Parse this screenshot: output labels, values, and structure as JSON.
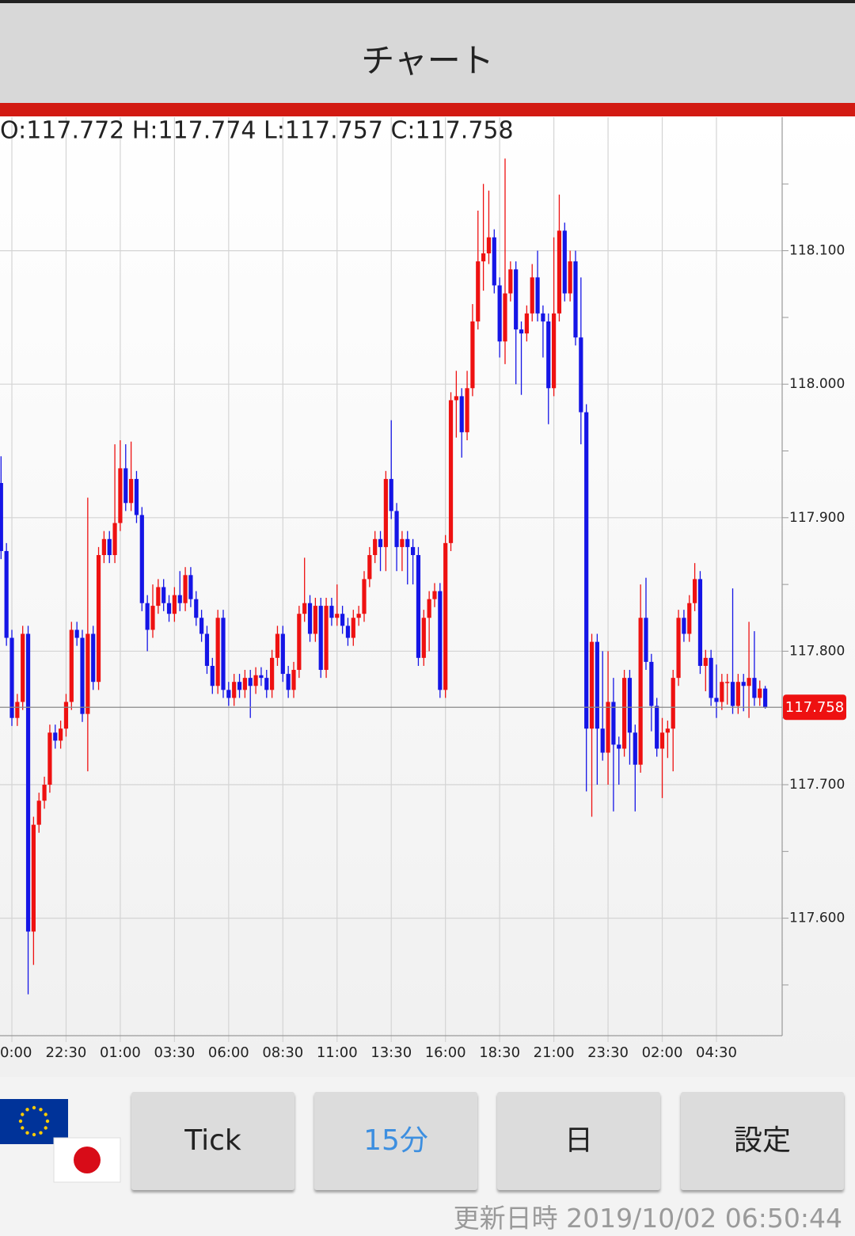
{
  "header": {
    "title": "チャート"
  },
  "chart_data": {
    "type": "candlestick",
    "ohlc_text": "O:117.772 H:117.774 L:117.757 C:117.758",
    "categories": [
      null,
      null,
      "0:00",
      null,
      null,
      null,
      null,
      null,
      null,
      null,
      null,
      null,
      "22:30",
      null,
      null,
      null,
      null,
      null,
      null,
      null,
      null,
      null,
      "01:00",
      null,
      null,
      null,
      null,
      null,
      null,
      null,
      null,
      null,
      "03:30",
      null,
      null,
      null,
      null,
      null,
      null,
      null,
      null,
      null,
      "06:00",
      null,
      null,
      null,
      null,
      null,
      null,
      null,
      null,
      null,
      "08:30",
      null,
      null,
      null,
      null,
      null,
      null,
      null,
      null,
      null,
      "11:00",
      null,
      null,
      null,
      null,
      null,
      null,
      null,
      null,
      null,
      "13:30",
      null,
      null,
      null,
      null,
      null,
      null,
      null,
      null,
      null,
      "16:00",
      null,
      null,
      null,
      null,
      null,
      null,
      null,
      null,
      null,
      "18:30",
      null,
      null,
      null,
      null,
      null,
      null,
      null,
      null,
      null,
      "21:00",
      null,
      null,
      null,
      null,
      null,
      null,
      null,
      null,
      null,
      "23:30",
      null,
      null,
      null,
      null,
      null,
      null,
      null,
      null,
      null,
      "02:00",
      null,
      null,
      null,
      null,
      null,
      null,
      null,
      null,
      null,
      "04:30",
      null,
      null,
      null,
      null,
      null,
      null,
      null,
      null,
      null
    ],
    "open": [
      117.926,
      117.875,
      117.81,
      117.75,
      117.762,
      117.813,
      117.59,
      117.67,
      117.688,
      117.7,
      117.739,
      117.733,
      117.742,
      117.762,
      117.816,
      117.81,
      117.753,
      117.813,
      117.777,
      117.872,
      117.884,
      117.872,
      117.896,
      117.937,
      117.911,
      117.929,
      117.902,
      117.836,
      117.816,
      117.834,
      117.848,
      117.836,
      117.828,
      117.842,
      117.836,
      117.857,
      117.839,
      117.825,
      117.813,
      117.789,
      117.774,
      117.825,
      117.771,
      117.765,
      117.777,
      117.771,
      117.78,
      117.774,
      117.782,
      117.78,
      117.771,
      117.795,
      117.813,
      117.783,
      117.771,
      117.786,
      117.828,
      117.836,
      117.813,
      117.834,
      117.786,
      117.834,
      117.825,
      117.828,
      117.819,
      117.81,
      117.825,
      117.828,
      117.854,
      117.872,
      117.884,
      117.878,
      117.929,
      117.905,
      117.878,
      117.884,
      117.878,
      117.872,
      117.795,
      117.825,
      117.839,
      117.845,
      117.771,
      117.881,
      117.988,
      117.991,
      117.964,
      117.997,
      118.047,
      118.092,
      118.098,
      118.11,
      118.074,
      118.032,
      118.068,
      118.086,
      118.041,
      118.038,
      118.053,
      118.08,
      118.053,
      118.047,
      117.997,
      118.053,
      118.115,
      118.068,
      118.092,
      118.035,
      117.979,
      117.742,
      117.807,
      117.742,
      117.724,
      117.762,
      117.73,
      117.727,
      117.78,
      117.739,
      117.715,
      117.825,
      117.792,
      117.759,
      117.727,
      117.739,
      117.742,
      117.78,
      117.825,
      117.813,
      117.836,
      117.854,
      117.789,
      117.795,
      117.765,
      117.762,
      117.777,
      117.777,
      117.759,
      117.777,
      117.774,
      117.78,
      117.765,
      117.772
    ],
    "high": [
      117.946,
      117.881,
      117.816,
      117.768,
      117.819,
      117.819,
      117.676,
      117.694,
      117.706,
      117.745,
      117.745,
      117.748,
      117.768,
      117.822,
      117.822,
      117.816,
      117.915,
      117.819,
      117.878,
      117.89,
      117.89,
      117.955,
      117.958,
      117.955,
      117.957,
      117.935,
      117.908,
      117.842,
      117.85,
      117.854,
      117.854,
      117.842,
      117.848,
      117.86,
      117.863,
      117.863,
      117.845,
      117.831,
      117.819,
      117.795,
      117.831,
      117.831,
      117.777,
      117.783,
      117.783,
      117.786,
      117.786,
      117.788,
      117.788,
      117.786,
      117.801,
      117.819,
      117.819,
      117.789,
      117.792,
      117.834,
      117.87,
      117.842,
      117.84,
      117.84,
      117.84,
      117.84,
      117.85,
      117.834,
      117.825,
      117.831,
      117.834,
      117.86,
      117.878,
      117.89,
      117.89,
      117.935,
      117.973,
      117.911,
      117.89,
      117.89,
      117.884,
      117.878,
      117.831,
      117.845,
      117.851,
      117.851,
      117.887,
      117.994,
      118.01,
      117.997,
      118.01,
      118.06,
      118.13,
      118.15,
      118.145,
      118.116,
      118.08,
      118.169,
      118.092,
      118.092,
      118.047,
      118.059,
      118.09,
      118.1,
      118.059,
      118.053,
      118.11,
      118.142,
      118.121,
      118.1,
      118.1,
      118.08,
      117.985,
      117.813,
      117.813,
      117.8,
      117.8,
      117.78,
      117.736,
      117.786,
      117.786,
      117.745,
      117.85,
      117.855,
      117.798,
      117.765,
      117.75,
      117.748,
      117.786,
      117.831,
      117.831,
      117.842,
      117.866,
      117.86,
      117.801,
      117.801,
      117.79,
      117.783,
      117.783,
      117.847,
      117.783,
      117.783,
      117.822,
      117.815,
      117.778,
      117.774
    ],
    "low": [
      117.869,
      117.804,
      117.744,
      117.744,
      117.756,
      117.543,
      117.565,
      117.664,
      117.682,
      117.694,
      117.727,
      117.727,
      117.736,
      117.756,
      117.804,
      117.747,
      117.71,
      117.771,
      117.771,
      117.866,
      117.866,
      117.866,
      117.89,
      117.905,
      117.905,
      117.896,
      117.83,
      117.8,
      117.81,
      117.828,
      117.83,
      117.822,
      117.822,
      117.83,
      117.83,
      117.833,
      117.819,
      117.807,
      117.783,
      117.768,
      117.768,
      117.765,
      117.759,
      117.759,
      117.765,
      117.765,
      117.75,
      117.768,
      117.774,
      117.765,
      117.765,
      117.789,
      117.777,
      117.765,
      117.765,
      117.78,
      117.822,
      117.807,
      117.807,
      117.78,
      117.78,
      117.819,
      117.819,
      117.813,
      117.804,
      117.804,
      117.819,
      117.822,
      117.848,
      117.866,
      117.86,
      117.86,
      117.899,
      117.86,
      117.86,
      117.85,
      117.85,
      117.789,
      117.789,
      117.8,
      117.833,
      117.765,
      117.765,
      117.875,
      117.96,
      117.945,
      117.958,
      117.991,
      118.041,
      118.07,
      118.09,
      118.068,
      118.02,
      118.015,
      118.062,
      118.0,
      117.992,
      118.032,
      118.047,
      118.047,
      118.02,
      117.97,
      117.991,
      118.047,
      118.062,
      118.062,
      118.029,
      117.955,
      117.695,
      117.676,
      117.7,
      117.718,
      117.7,
      117.68,
      117.7,
      117.721,
      117.715,
      117.68,
      117.709,
      117.786,
      117.74,
      117.721,
      117.69,
      117.72,
      117.71,
      117.774,
      117.807,
      117.807,
      117.83,
      117.783,
      117.77,
      117.759,
      117.75,
      117.756,
      117.76,
      117.753,
      117.753,
      117.755,
      117.75,
      117.759,
      117.759,
      117.757
    ],
    "close": [
      117.875,
      117.81,
      117.75,
      117.762,
      117.813,
      117.59,
      117.67,
      117.688,
      117.7,
      117.739,
      117.733,
      117.742,
      117.762,
      117.816,
      117.81,
      117.753,
      117.813,
      117.777,
      117.872,
      117.884,
      117.872,
      117.896,
      117.937,
      117.911,
      117.929,
      117.902,
      117.836,
      117.816,
      117.834,
      117.848,
      117.836,
      117.828,
      117.842,
      117.836,
      117.857,
      117.839,
      117.825,
      117.813,
      117.789,
      117.774,
      117.825,
      117.771,
      117.765,
      117.777,
      117.771,
      117.78,
      117.774,
      117.782,
      117.78,
      117.771,
      117.795,
      117.813,
      117.783,
      117.771,
      117.786,
      117.828,
      117.836,
      117.813,
      117.834,
      117.786,
      117.834,
      117.825,
      117.828,
      117.819,
      117.81,
      117.825,
      117.828,
      117.854,
      117.872,
      117.884,
      117.878,
      117.929,
      117.905,
      117.878,
      117.884,
      117.878,
      117.872,
      117.795,
      117.825,
      117.839,
      117.845,
      117.771,
      117.881,
      117.988,
      117.991,
      117.964,
      117.997,
      118.047,
      118.092,
      118.098,
      118.11,
      118.074,
      118.032,
      118.068,
      118.086,
      118.041,
      118.038,
      118.053,
      118.08,
      118.053,
      118.047,
      117.997,
      118.053,
      118.115,
      118.068,
      118.092,
      118.035,
      117.979,
      117.742,
      117.807,
      117.742,
      117.724,
      117.762,
      117.73,
      117.727,
      117.78,
      117.739,
      117.715,
      117.825,
      117.792,
      117.759,
      117.727,
      117.739,
      117.742,
      117.78,
      117.825,
      117.813,
      117.836,
      117.854,
      117.789,
      117.795,
      117.765,
      117.762,
      117.777,
      117.777,
      117.759,
      117.777,
      117.774,
      117.78,
      117.765,
      117.772,
      117.758
    ],
    "up_color": "#ee1111",
    "down_color": "#1515e6",
    "last_price": 117.758,
    "last_price_color": "#ee1111",
    "ylim": [
      117.512,
      118.2
    ],
    "yticks": [
      {
        "value": 117.6,
        "label": "117.600"
      },
      {
        "value": 117.7,
        "label": "117.700"
      },
      {
        "value": 117.8,
        "label": "117.800"
      },
      {
        "value": 117.9,
        "label": "117.900"
      },
      {
        "value": 118.0,
        "label": "118.000"
      },
      {
        "value": 118.1,
        "label": "118.100"
      }
    ],
    "yminorticks": [
      117.55,
      117.65,
      117.75,
      117.85,
      117.95,
      118.05,
      118.15
    ],
    "grid": true
  },
  "buttons": [
    "Tick",
    "15分",
    "日",
    "設定"
  ],
  "footer": "更新日時 2019/10/02 06:50:44"
}
